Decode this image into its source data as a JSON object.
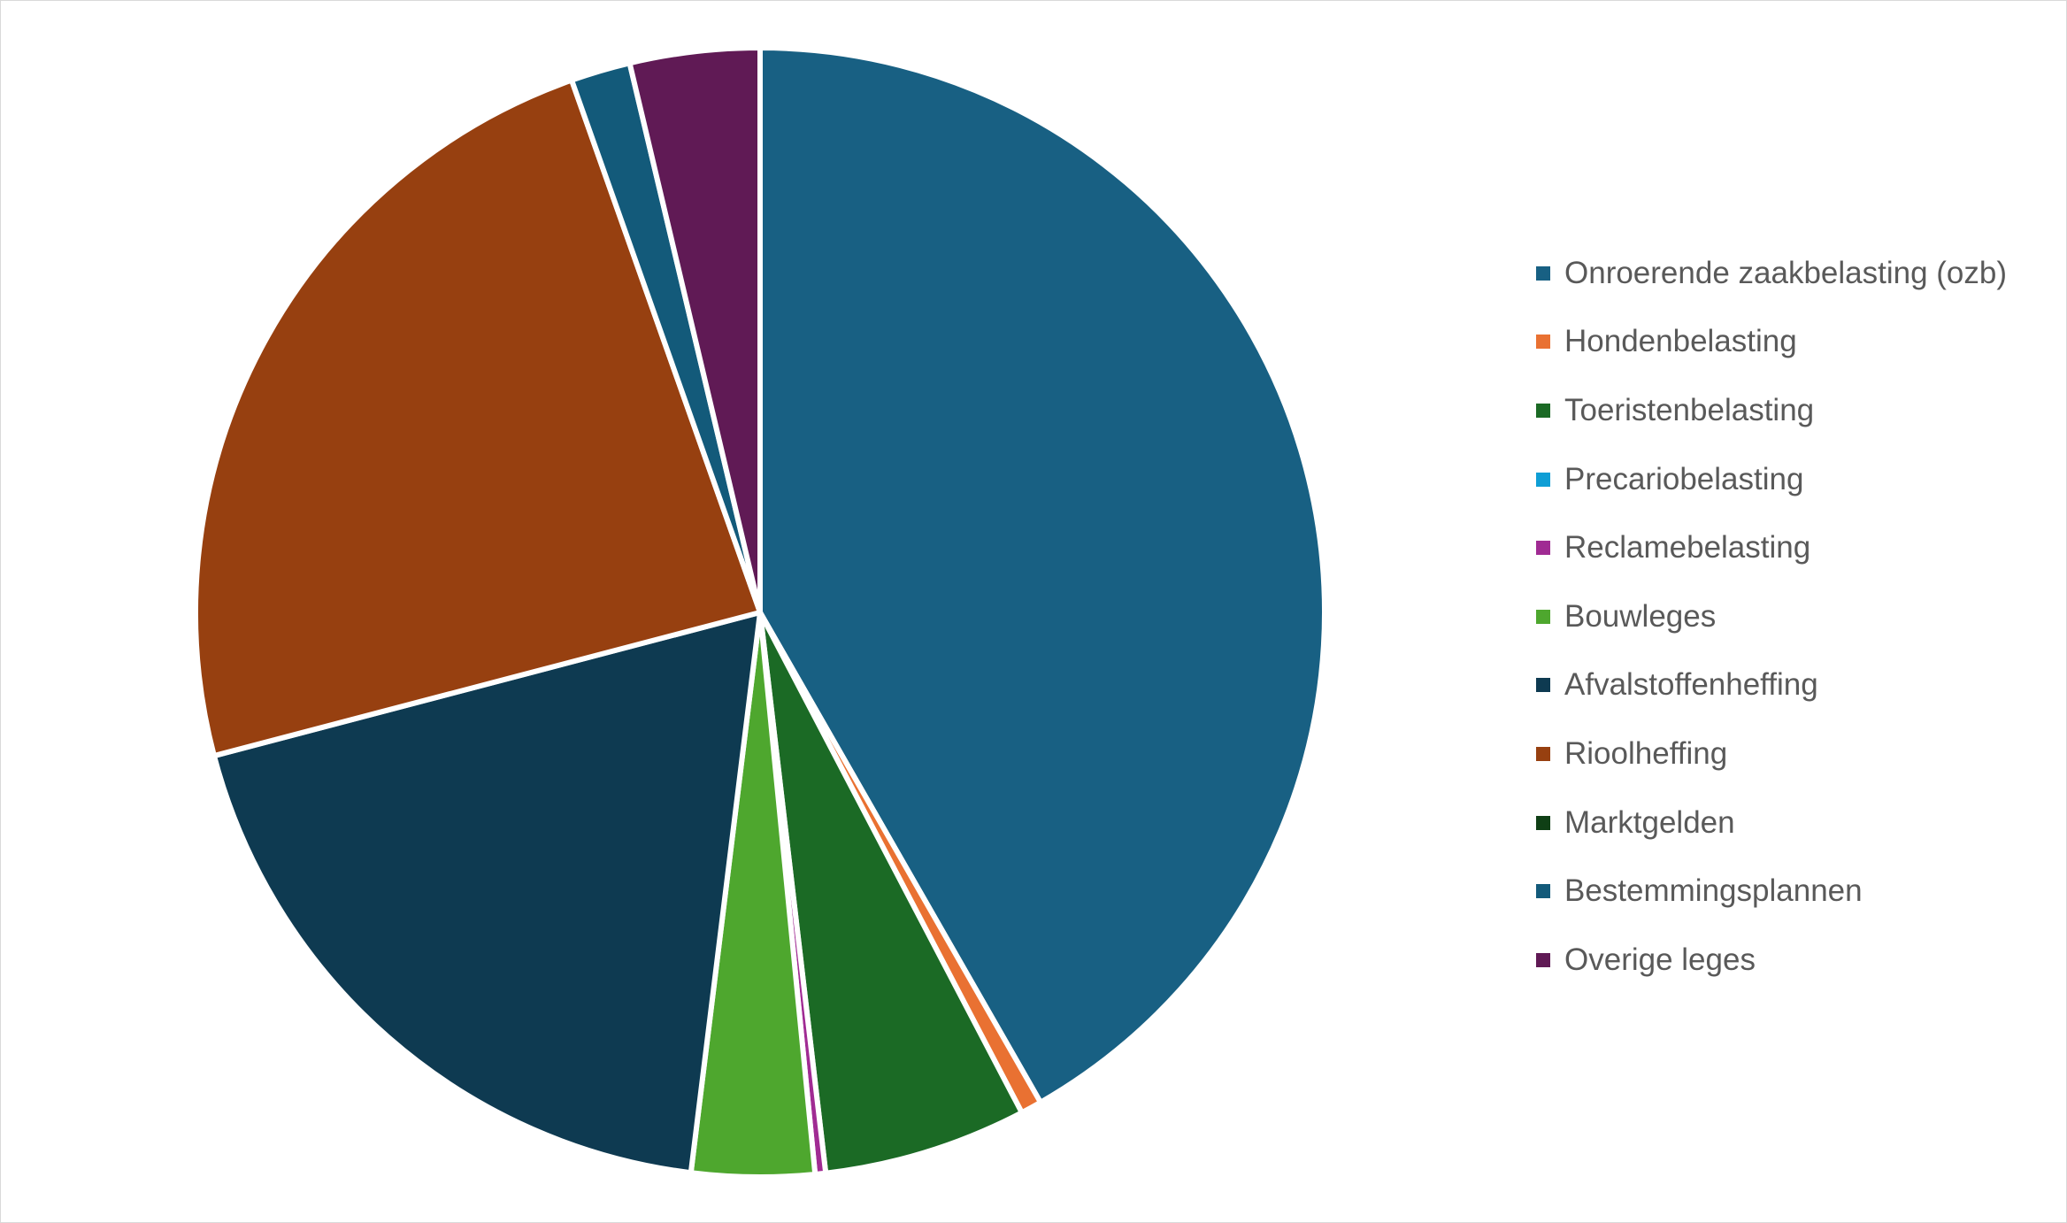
{
  "chart_data": {
    "type": "pie",
    "title": "",
    "legend_position": "right",
    "start_angle_deg": 0,
    "direction": "clockwise",
    "slices": [
      {
        "label": "Onroerende zaakbelasting (ozb)",
        "value": 41.6,
        "color": "#186083"
      },
      {
        "label": "Hondenbelasting",
        "value": 0.6,
        "color": "#E97132"
      },
      {
        "label": "Toeristenbelasting",
        "value": 5.8,
        "color": "#1B6A25"
      },
      {
        "label": "Precariobelasting",
        "value": 0.0,
        "color": "#0F9ED5"
      },
      {
        "label": "Reclamebelasting",
        "value": 0.3,
        "color": "#A02B93"
      },
      {
        "label": "Bouwleges",
        "value": 3.5,
        "color": "#4EA72E"
      },
      {
        "label": "Afvalstoffenheffing",
        "value": 18.9,
        "color": "#0E3A51"
      },
      {
        "label": "Rioolheffing",
        "value": 23.6,
        "color": "#974010"
      },
      {
        "label": "Marktgelden",
        "value": 0.0,
        "color": "#0F3F15"
      },
      {
        "label": "Bestemmingsplannen",
        "value": 1.7,
        "color": "#135A7A"
      },
      {
        "label": "Overige leges",
        "value": 3.7,
        "color": "#601A55"
      }
    ]
  }
}
